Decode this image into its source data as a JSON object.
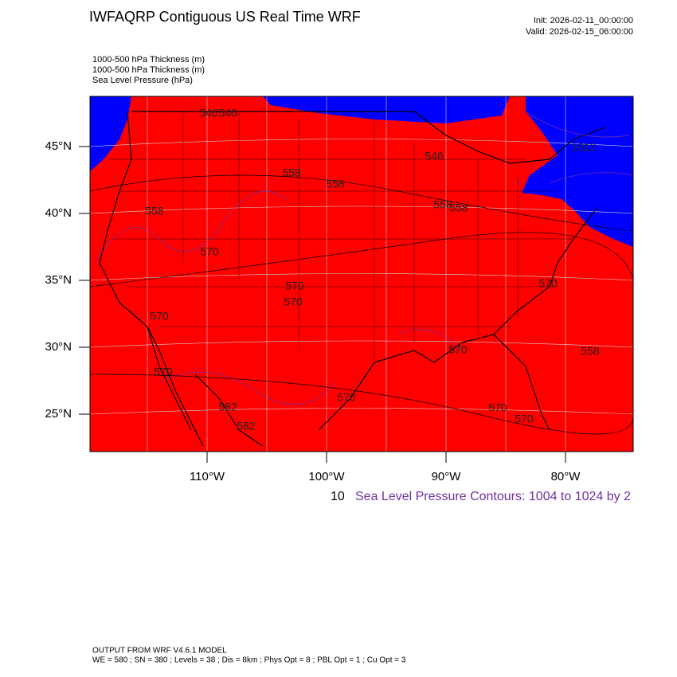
{
  "header": {
    "title": "IWFAQRP Contiguous US Real Time WRF",
    "init": "Init: 2026-02-11_00:00:00",
    "valid": "Valid: 2026-02-15_06:00:00"
  },
  "fields": [
    "1000-500 hPa Thickness   (m)",
    "1000-500 hPa Thickness   (m)",
    "Sea Level Pressure   (hPa)"
  ],
  "lat_ticks": [
    {
      "value": 45,
      "label": "45°N"
    },
    {
      "value": 40,
      "label": "40°N"
    },
    {
      "value": 35,
      "label": "35°N"
    },
    {
      "value": 30,
      "label": "30°N"
    },
    {
      "value": 25,
      "label": "25°N"
    }
  ],
  "lon_ticks": [
    {
      "value": -110,
      "label": "110°W"
    },
    {
      "value": -100,
      "label": "100°W"
    },
    {
      "value": -90,
      "label": "90°W"
    },
    {
      "value": -80,
      "label": "80°W"
    }
  ],
  "contour_labels": [
    "546",
    "546",
    "558",
    "558",
    "558",
    "570",
    "570",
    "570",
    "570",
    "570",
    "582",
    "582",
    "570",
    "570",
    "558",
    "558",
    "558",
    "570",
    "570",
    "546",
    "1012",
    "570"
  ],
  "contour_info": {
    "prefix": "10",
    "text": "Sea Level Pressure Contours: 1004 to 1024 by 2"
  },
  "footer": {
    "line1": "OUTPUT FROM WRF V4.6.1 MODEL",
    "line2": "WE = 580 ; SN = 380 ; Levels = 38 ; Dis = 8km ; Phys Opt = 8 ; PBL Opt = 1 ; Cu Opt = 3"
  }
}
